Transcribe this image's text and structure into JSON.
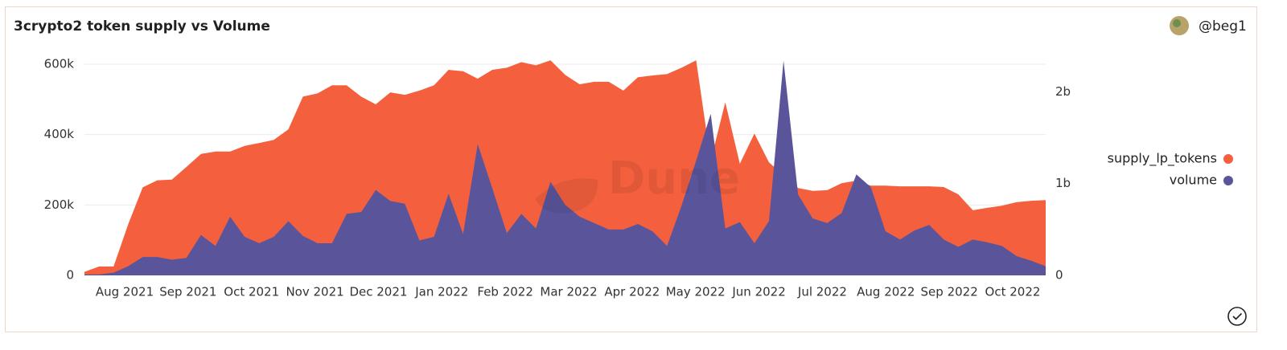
{
  "chart_data": {
    "type": "area",
    "title": "3crypto2 token supply vs Volume",
    "author": "@beg1",
    "watermark": "Dune",
    "x_labels": [
      "Aug 2021",
      "Sep 2021",
      "Oct 2021",
      "Nov 2021",
      "Dec 2021",
      "Jan 2022",
      "Feb 2022",
      "Mar 2022",
      "Apr 2022",
      "May 2022",
      "Jun 2022",
      "Jul 2022",
      "Aug 2022",
      "Sep 2022",
      "Oct 2022"
    ],
    "ylim": [
      0,
      600000
    ],
    "yticks": [
      0,
      {
        "value": 200000,
        "label": "200k"
      },
      {
        "value": 400000,
        "label": "400k"
      },
      {
        "value": 600000,
        "label": "600k"
      }
    ],
    "y2lim": [
      0,
      2300000000
    ],
    "y2ticks": [
      0,
      {
        "value": 1000000000,
        "label": "1b"
      },
      {
        "value": 2000000000,
        "label": "2b"
      }
    ],
    "grid": true,
    "legend": "right",
    "series": [
      {
        "name": "supply_lp_tokens",
        "color": "#f4603e",
        "values": [
          10000,
          25000,
          25000,
          145000,
          250000,
          270000,
          272000,
          308000,
          345000,
          352000,
          352000,
          368000,
          376000,
          385000,
          415000,
          508000,
          517000,
          540000,
          540000,
          508000,
          486000,
          520000,
          513000,
          525000,
          540000,
          584000,
          580000,
          559000,
          584000,
          590000,
          606000,
          597000,
          611000,
          570000,
          543000,
          550000,
          550000,
          525000,
          563000,
          568000,
          572000,
          590000,
          611000,
          326000,
          492000,
          317000,
          403000,
          321000,
          285000,
          248000,
          240000,
          242000,
          262000,
          269000,
          255000,
          255000,
          253000,
          253000,
          253000,
          251000,
          230000,
          185000,
          192000,
          198000,
          208000,
          212000,
          214000
        ]
      },
      {
        "name": "volume",
        "color": "#5a559b",
        "axis": "y2",
        "values": [
          10000000,
          10000000,
          30000000,
          100000000,
          200000000,
          200000000,
          170000000,
          190000000,
          440000000,
          320000000,
          640000000,
          420000000,
          350000000,
          420000000,
          590000000,
          430000000,
          350000000,
          350000000,
          670000000,
          690000000,
          930000000,
          810000000,
          780000000,
          380000000,
          420000000,
          890000000,
          450000000,
          1430000000,
          950000000,
          460000000,
          670000000,
          510000000,
          1020000000,
          770000000,
          640000000,
          570000000,
          500000000,
          500000000,
          560000000,
          480000000,
          320000000,
          760000000,
          1250000000,
          1760000000,
          510000000,
          580000000,
          350000000,
          590000000,
          2340000000,
          880000000,
          620000000,
          570000000,
          680000000,
          1100000000,
          960000000,
          480000000,
          390000000,
          490000000,
          550000000,
          390000000,
          310000000,
          390000000,
          360000000,
          320000000,
          210000000,
          160000000,
          100000000
        ]
      }
    ]
  }
}
